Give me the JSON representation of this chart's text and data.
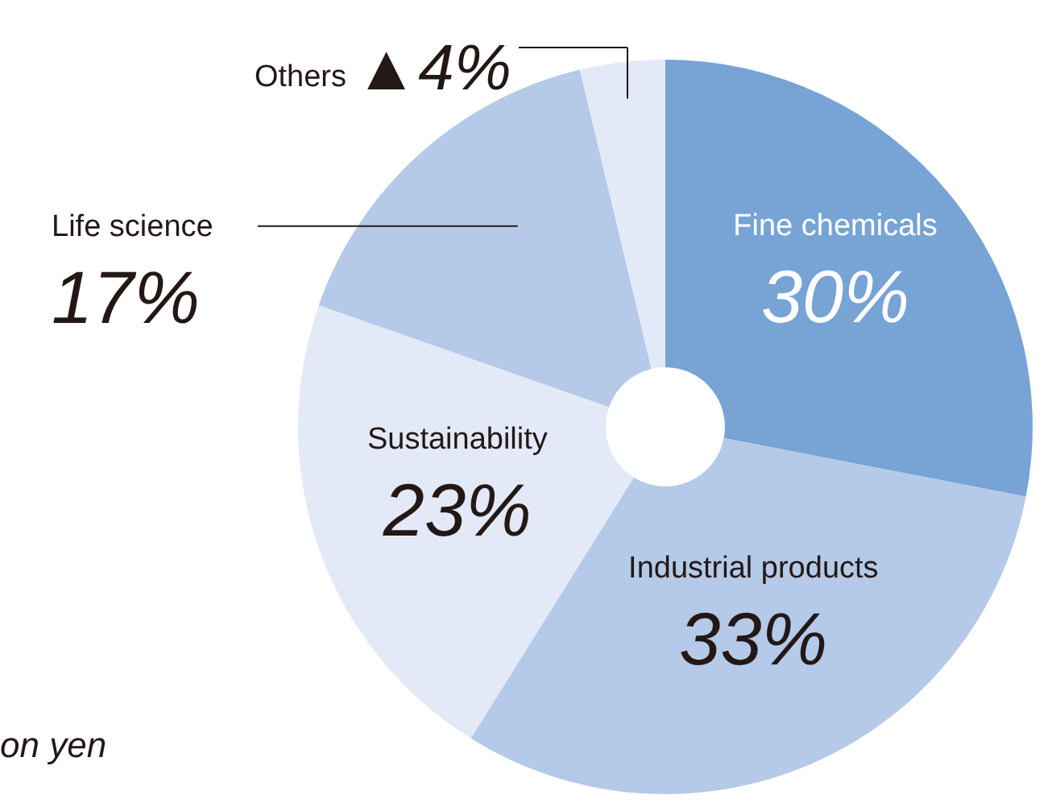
{
  "chart_data": {
    "type": "donut",
    "categories": [
      "Fine chemicals",
      "Industrial products",
      "Sustainability",
      "Life science",
      "Others"
    ],
    "values": [
      30,
      33,
      23,
      17,
      4
    ],
    "colors": [
      "#77a3d5",
      "#b5c9e8",
      "#e3e9f6",
      "#b5c9e8",
      "#e3e9f6"
    ],
    "value_labels": [
      "30%",
      "33%",
      "23%",
      "17%",
      "▲4%"
    ],
    "annotations": [
      "on yen"
    ],
    "legend": false
  }
}
